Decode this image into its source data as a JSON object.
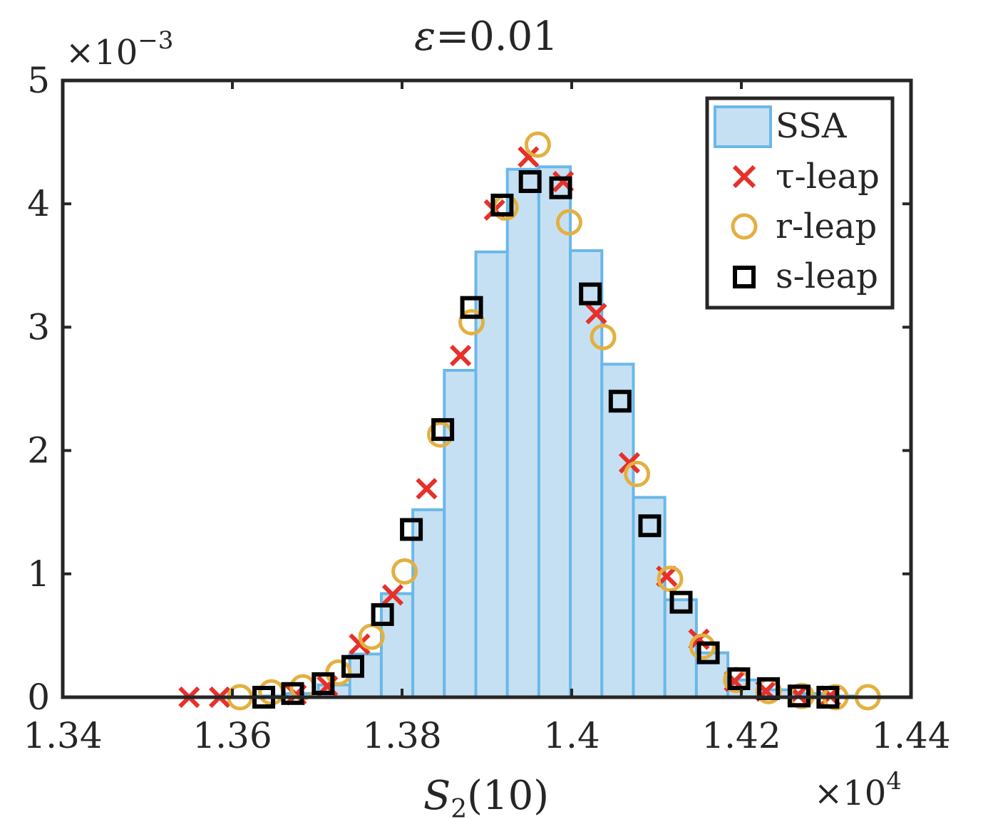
{
  "chart_data": {
    "type": "bar",
    "title_symbol": "ε",
    "title_value": "=0.01",
    "xlabel_main": "S",
    "xlabel_sub": "2",
    "xlabel_rest": "(10)",
    "x_multiplier_base": "×10",
    "x_multiplier_exp": "4",
    "y_multiplier_base": "×10",
    "y_multiplier_exp": "−3",
    "xlim": [
      1.34,
      1.44
    ],
    "ylim": [
      0,
      5
    ],
    "xticks": [
      1.34,
      1.36,
      1.38,
      1.4,
      1.42,
      1.44
    ],
    "xtick_labels": [
      "1.34",
      "1.36",
      "1.38",
      "1.4",
      "1.42",
      "1.44"
    ],
    "yticks": [
      0,
      1,
      2,
      3,
      4,
      5
    ],
    "ytick_labels": [
      "0",
      "1",
      "2",
      "3",
      "4",
      "5"
    ],
    "legend_position": "top-right",
    "histogram": {
      "name": "SSA",
      "bin_start": 1.3627,
      "bin_width": 0.003714,
      "values": [
        0.01,
        0.03,
        0.1,
        0.35,
        0.84,
        1.52,
        2.65,
        3.61,
        4.28,
        4.3,
        3.62,
        2.7,
        1.62,
        0.79,
        0.36,
        0.14,
        0.06,
        0.03,
        0.01
      ]
    },
    "series": [
      {
        "name": "τ-leap",
        "marker": "x",
        "color": "#e8302a",
        "x": [
          1.3549,
          1.3585,
          1.3675,
          1.3712,
          1.375,
          1.3789,
          1.3829,
          1.3869,
          1.3909,
          1.3949,
          1.399,
          1.4029,
          1.4068,
          1.4112,
          1.415,
          1.4192,
          1.4229,
          1.4267,
          1.4305
        ],
        "y": [
          0,
          0,
          0.02,
          0.09,
          0.43,
          0.83,
          1.69,
          2.77,
          3.95,
          4.38,
          4.18,
          3.11,
          1.9,
          0.98,
          0.47,
          0.13,
          0.05,
          0.02,
          0.01
        ]
      },
      {
        "name": "r-leap",
        "marker": "o",
        "color": "#e3b040",
        "x": [
          1.3609,
          1.3646,
          1.3683,
          1.3725,
          1.3764,
          1.3803,
          1.3845,
          1.3882,
          1.3922,
          1.396,
          1.3997,
          1.4037,
          1.4077,
          1.4116,
          1.4154,
          1.4194,
          1.4232,
          1.4271,
          1.4311,
          1.4349
        ],
        "y": [
          0,
          0.04,
          0.08,
          0.2,
          0.49,
          1.02,
          2.13,
          3.04,
          3.97,
          4.48,
          3.85,
          2.92,
          1.81,
          0.96,
          0.41,
          0.14,
          0.05,
          0.01,
          0,
          0
        ]
      },
      {
        "name": "s-leap",
        "marker": "s",
        "color": "#000000",
        "x": [
          1.3637,
          1.3671,
          1.3707,
          1.3742,
          1.3777,
          1.3811,
          1.3848,
          1.3882,
          1.3918,
          1.3951,
          1.3987,
          1.4022,
          1.4057,
          1.4092,
          1.4129,
          1.4161,
          1.4197,
          1.4232,
          1.4268,
          1.4302
        ],
        "y": [
          0,
          0.03,
          0.11,
          0.25,
          0.67,
          1.36,
          2.17,
          3.16,
          3.99,
          4.18,
          4.13,
          3.27,
          2.4,
          1.39,
          0.77,
          0.36,
          0.15,
          0.07,
          0.01,
          0
        ]
      }
    ],
    "colors": {
      "hist_fill": "#c6e0f3",
      "hist_edge": "#6ab8e8",
      "axes": "#262626"
    }
  }
}
